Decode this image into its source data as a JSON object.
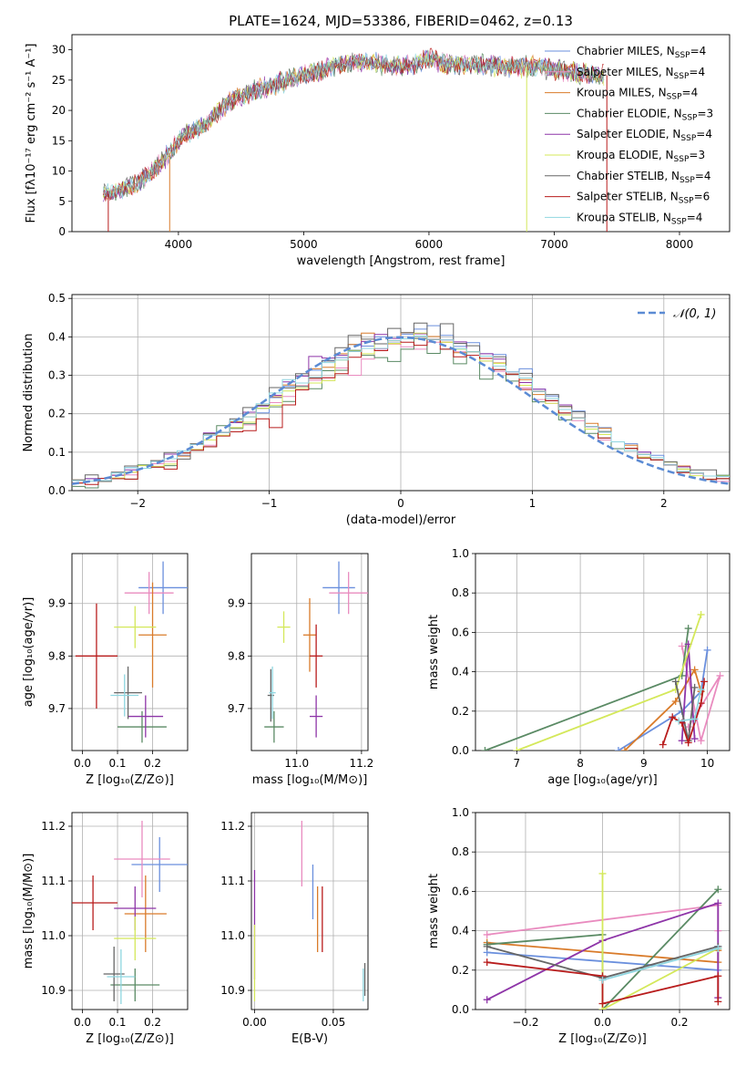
{
  "figure": {
    "title": "PLATE=1624, MJD=53386, FIBERID=0462, z=0.13"
  },
  "colors": {
    "chabrier_miles": "#6a8fdd",
    "salpeter_miles": "#e98bbf",
    "kroupa_miles": "#d97b2a",
    "chabrier_elodie": "#5a8a64",
    "salpeter_elodie": "#8e35a8",
    "kroupa_elodie": "#d4e85a",
    "chabrier_stelib": "#666666",
    "salpeter_stelib": "#b81c1c",
    "kroupa_stelib": "#8fd6e0",
    "normal_curve": "#5b8bd4",
    "grid": "#b0b0b0"
  },
  "chart_data": [
    {
      "id": "spectrum",
      "type": "line",
      "xlabel": "wavelength [Angstrom, rest frame]",
      "ylabel": "Flux [fλ10⁻¹⁷ erg cm⁻² s⁻¹ A⁻¹]",
      "xlim": [
        3150,
        8400
      ],
      "ylim": [
        0,
        32.5
      ],
      "xticks": [
        4000,
        5000,
        6000,
        7000,
        8000
      ],
      "yticks": [
        0,
        5,
        10,
        15,
        20,
        25,
        30
      ],
      "grid": false,
      "legend_position": "top-right",
      "x": [
        3400,
        3550,
        3700,
        3850,
        3950,
        4050,
        4200,
        4350,
        4500,
        4650,
        4800,
        4950,
        5100,
        5250,
        5400,
        5550,
        5700,
        5850,
        6000,
        6200,
        6400,
        6600,
        6800,
        7000,
        7200,
        7400
      ],
      "y": [
        6.0,
        6.8,
        8.5,
        11.0,
        13.5,
        16.0,
        17.5,
        20.5,
        22.5,
        23.5,
        24.5,
        25.5,
        26.5,
        27.2,
        27.8,
        28.0,
        27.2,
        27.5,
        28.5,
        27.5,
        27.5,
        27.3,
        27.2,
        26.8,
        26.0,
        25.8
      ],
      "series": [
        {
          "name": "Chabrier MILES, N_SSP=4",
          "color_key": "chabrier_miles"
        },
        {
          "name": "Salpeter MILES, N_SSP=4",
          "color_key": "salpeter_miles"
        },
        {
          "name": "Kroupa MILES, N_SSP=4",
          "color_key": "kroupa_miles"
        },
        {
          "name": "Chabrier ELODIE, N_SSP=3",
          "color_key": "chabrier_elodie"
        },
        {
          "name": "Salpeter ELODIE, N_SSP=4",
          "color_key": "salpeter_elodie"
        },
        {
          "name": "Kroupa ELODIE, N_SSP=3",
          "color_key": "kroupa_elodie"
        },
        {
          "name": "Chabrier STELIB, N_SSP=4",
          "color_key": "chabrier_stelib"
        },
        {
          "name": "Salpeter STELIB, N_SSP=6",
          "color_key": "salpeter_stelib"
        },
        {
          "name": "Kroupa STELIB, N_SSP=4",
          "color_key": "kroupa_stelib"
        }
      ],
      "edge_drops": [
        {
          "color_key": "salpeter_stelib",
          "x": 3440
        },
        {
          "color_key": "kroupa_miles",
          "x": 3930
        },
        {
          "color_key": "kroupa_elodie",
          "x": 6780
        },
        {
          "color_key": "salpeter_stelib",
          "x": 7420
        }
      ]
    },
    {
      "id": "residuals",
      "type": "line",
      "xlabel": "(data-model)/error",
      "ylabel": "Normed distribution",
      "xlim": [
        -2.5,
        2.5
      ],
      "ylim": [
        0,
        0.51
      ],
      "xticks": [
        -2,
        -1,
        0,
        1,
        2
      ],
      "yticks": [
        0.0,
        0.1,
        0.2,
        0.3,
        0.4,
        0.5
      ],
      "grid": true,
      "legend_position": "top-right",
      "curve_label": "𝒩(0, 1)",
      "bin_centers": [
        -2.45,
        -2.35,
        -2.25,
        -2.15,
        -2.05,
        -1.95,
        -1.85,
        -1.75,
        -1.65,
        -1.55,
        -1.45,
        -1.35,
        -1.25,
        -1.15,
        -1.05,
        -0.95,
        -0.85,
        -0.75,
        -0.65,
        -0.55,
        -0.45,
        -0.35,
        -0.25,
        -0.15,
        -0.05,
        0.05,
        0.15,
        0.25,
        0.35,
        0.45,
        0.55,
        0.65,
        0.75,
        0.85,
        0.95,
        1.05,
        1.15,
        1.25,
        1.35,
        1.45,
        1.55,
        1.65,
        1.75,
        1.85,
        1.95,
        2.05,
        2.15,
        2.25,
        2.35,
        2.45
      ],
      "base_density": [
        0.02,
        0.025,
        0.032,
        0.04,
        0.048,
        0.058,
        0.07,
        0.083,
        0.098,
        0.114,
        0.132,
        0.151,
        0.171,
        0.192,
        0.214,
        0.236,
        0.259,
        0.28,
        0.301,
        0.321,
        0.34,
        0.356,
        0.37,
        0.382,
        0.39,
        0.395,
        0.396,
        0.393,
        0.386,
        0.375,
        0.361,
        0.344,
        0.324,
        0.303,
        0.281,
        0.258,
        0.234,
        0.211,
        0.189,
        0.167,
        0.146,
        0.127,
        0.11,
        0.094,
        0.08,
        0.067,
        0.056,
        0.046,
        0.038,
        0.031
      ],
      "series_offsets": [
        [
          0.0,
          0.01,
          -0.01,
          0.01,
          0.02,
          0.0,
          0.01,
          0.02,
          -0.01,
          0.01,
          0.02,
          0.0,
          0.01,
          0.02,
          -0.02,
          0.01,
          0.02,
          0.0,
          0.02,
          0.03,
          0.01,
          0.04,
          0.01,
          0.03,
          -0.01,
          0.02,
          0.04,
          0.06,
          0.03,
          0.0,
          0.04,
          0.02,
          0.05,
          0.0,
          0.06,
          0.01,
          0.02,
          0.0,
          0.03,
          0.0,
          0.03,
          0.0,
          0.02,
          0.01,
          0.02,
          0.0,
          0.01,
          0.0,
          0.0,
          0.0
        ],
        [
          0.01,
          0.0,
          0.0,
          0.01,
          0.0,
          0.01,
          0.0,
          0.0,
          0.01,
          0.0,
          0.01,
          0.02,
          0.0,
          0.01,
          0.03,
          0.0,
          0.01,
          0.02,
          0.01,
          0.02,
          0.04,
          0.03,
          0.08,
          0.04,
          0.02,
          0.01,
          0.03,
          0.04,
          0.01,
          0.0,
          0.02,
          0.0,
          0.01,
          0.02,
          0.0,
          0.02,
          0.03,
          0.01,
          0.0,
          0.01,
          0.0,
          0.02,
          0.0,
          0.0,
          0.01,
          0.0,
          0.0,
          0.01,
          0.0,
          0.0
        ],
        [
          -0.01,
          0.0,
          0.01,
          0.0,
          -0.01,
          0.0,
          0.0,
          0.01,
          0.01,
          0.0,
          -0.01,
          0.01,
          0.02,
          0.0,
          0.01,
          0.0,
          0.01,
          0.01,
          0.02,
          0.0,
          0.02,
          0.0,
          0.02,
          0.03,
          0.05,
          0.0,
          -0.01,
          0.02,
          0.0,
          0.01,
          0.0,
          -0.02,
          0.0,
          0.0,
          0.01,
          0.0,
          0.01,
          -0.01,
          0.0,
          0.01,
          0.0,
          0.01,
          0.02,
          0.0,
          0.01,
          0.0,
          0.0,
          0.0,
          0.01,
          0.0
        ]
      ]
    },
    {
      "id": "z_age",
      "type": "scatter",
      "xlabel": "Z [log₁₀(Z/Z⊙)]",
      "ylabel": "age  [log₁₀(age/yr)]",
      "xlim": [
        -0.03,
        0.3
      ],
      "ylim": [
        9.62,
        9.995
      ],
      "xticks": [
        0.0,
        0.1,
        0.2
      ],
      "yticks": [
        9.7,
        9.8,
        9.9
      ],
      "grid": true,
      "points": [
        {
          "x": 0.23,
          "y": 9.93,
          "xerr": 0.07,
          "yerr": 0.05,
          "color_key": "chabrier_miles"
        },
        {
          "x": 0.19,
          "y": 9.92,
          "xerr": 0.07,
          "yerr": 0.04,
          "color_key": "salpeter_miles"
        },
        {
          "x": 0.2,
          "y": 9.84,
          "xerr": 0.04,
          "yerr": 0.1,
          "color_key": "kroupa_miles"
        },
        {
          "x": 0.17,
          "y": 9.665,
          "xerr": 0.07,
          "yerr": 0.03,
          "color_key": "chabrier_elodie"
        },
        {
          "x": 0.18,
          "y": 9.685,
          "xerr": 0.05,
          "yerr": 0.04,
          "color_key": "salpeter_elodie"
        },
        {
          "x": 0.15,
          "y": 9.855,
          "xerr": 0.06,
          "yerr": 0.04,
          "color_key": "kroupa_elodie"
        },
        {
          "x": 0.13,
          "y": 9.73,
          "xerr": 0.04,
          "yerr": 0.05,
          "color_key": "chabrier_stelib"
        },
        {
          "x": 0.04,
          "y": 9.8,
          "xerr": 0.06,
          "yerr": 0.1,
          "color_key": "salpeter_stelib"
        },
        {
          "x": 0.12,
          "y": 9.725,
          "xerr": 0.04,
          "yerr": 0.04,
          "color_key": "kroupa_stelib"
        }
      ]
    },
    {
      "id": "mass_age",
      "type": "scatter",
      "xlabel": "mass [log₁₀(M/M⊙)]",
      "ylabel": "",
      "xlim": [
        10.86,
        11.22
      ],
      "ylim": [
        9.62,
        9.995
      ],
      "xticks": [
        11.0,
        11.2
      ],
      "yticks": [
        9.7,
        9.8,
        9.9
      ],
      "grid": true,
      "points": [
        {
          "x": 11.13,
          "y": 9.93,
          "xerr": 0.05,
          "yerr": 0.05,
          "color_key": "chabrier_miles"
        },
        {
          "x": 11.16,
          "y": 9.92,
          "xerr": 0.06,
          "yerr": 0.04,
          "color_key": "salpeter_miles"
        },
        {
          "x": 11.04,
          "y": 9.84,
          "xerr": 0.02,
          "yerr": 0.07,
          "color_key": "kroupa_miles"
        },
        {
          "x": 10.93,
          "y": 9.665,
          "xerr": 0.03,
          "yerr": 0.03,
          "color_key": "chabrier_elodie"
        },
        {
          "x": 11.06,
          "y": 9.685,
          "xerr": 0.02,
          "yerr": 0.04,
          "color_key": "salpeter_elodie"
        },
        {
          "x": 10.96,
          "y": 9.855,
          "xerr": 0.02,
          "yerr": 0.03,
          "color_key": "kroupa_elodie"
        },
        {
          "x": 10.92,
          "y": 9.725,
          "xerr": 0.01,
          "yerr": 0.05,
          "color_key": "chabrier_stelib"
        },
        {
          "x": 11.06,
          "y": 9.8,
          "xerr": 0.02,
          "yerr": 0.06,
          "color_key": "salpeter_stelib"
        },
        {
          "x": 10.925,
          "y": 9.73,
          "xerr": 0.01,
          "yerr": 0.05,
          "color_key": "kroupa_stelib"
        }
      ]
    },
    {
      "id": "age_weight",
      "type": "line",
      "xlabel": "age  [log₁₀(age/yr)]",
      "ylabel": "mass weight",
      "xlim": [
        6.35,
        10.35
      ],
      "ylim": [
        0,
        1
      ],
      "xticks": [
        7,
        8,
        9,
        10
      ],
      "yticks": [
        0.0,
        0.2,
        0.4,
        0.6,
        0.8,
        1.0
      ],
      "grid": true,
      "series": [
        {
          "color_key": "chabrier_miles",
          "x": [
            8.6,
            9.6,
            9.9,
            10.0
          ],
          "y": [
            0.0,
            0.2,
            0.3,
            0.51
          ]
        },
        {
          "color_key": "salpeter_miles",
          "x": [
            9.6,
            9.9,
            10.2,
            9.7
          ],
          "y": [
            0.53,
            0.05,
            0.38,
            0.12
          ]
        },
        {
          "color_key": "kroupa_miles",
          "x": [
            8.7,
            9.5,
            9.8,
            9.9
          ],
          "y": [
            0.0,
            0.25,
            0.41,
            0.3
          ]
        },
        {
          "color_key": "chabrier_elodie",
          "x": [
            6.5,
            9.6,
            9.7
          ],
          "y": [
            0.0,
            0.38,
            0.62
          ]
        },
        {
          "color_key": "salpeter_elodie",
          "x": [
            9.6,
            9.7,
            9.8
          ],
          "y": [
            0.05,
            0.54,
            0.06
          ]
        },
        {
          "color_key": "kroupa_elodie",
          "x": [
            7.0,
            9.5,
            9.9
          ],
          "y": [
            0.0,
            0.31,
            0.69
          ]
        },
        {
          "color_key": "chabrier_stelib",
          "x": [
            9.5,
            9.7,
            9.8
          ],
          "y": [
            0.35,
            0.05,
            0.32
          ]
        },
        {
          "color_key": "salpeter_stelib",
          "x": [
            9.3,
            9.45,
            9.6,
            9.7,
            9.9,
            9.95
          ],
          "y": [
            0.03,
            0.17,
            0.14,
            0.04,
            0.24,
            0.35
          ]
        },
        {
          "color_key": "kroupa_stelib",
          "x": [
            9.55,
            9.8,
            9.9
          ],
          "y": [
            0.15,
            0.16,
            0.31
          ]
        }
      ]
    },
    {
      "id": "z_mass",
      "type": "scatter",
      "xlabel": "Z [log₁₀(Z/Z⊙)]",
      "ylabel": "mass [log₁₀(M/M⊙)]",
      "xlim": [
        -0.03,
        0.3
      ],
      "ylim": [
        10.865,
        11.225
      ],
      "xticks": [
        0.0,
        0.1,
        0.2
      ],
      "yticks": [
        10.9,
        11.0,
        11.1,
        11.2
      ],
      "grid": true,
      "points": [
        {
          "x": 0.22,
          "y": 11.13,
          "xerr": 0.08,
          "yerr": 0.05,
          "color_key": "chabrier_miles"
        },
        {
          "x": 0.17,
          "y": 11.14,
          "xerr": 0.08,
          "yerr": 0.07,
          "color_key": "salpeter_miles"
        },
        {
          "x": 0.18,
          "y": 11.04,
          "xerr": 0.06,
          "yerr": 0.07,
          "color_key": "kroupa_miles"
        },
        {
          "x": 0.15,
          "y": 10.91,
          "xerr": 0.07,
          "yerr": 0.03,
          "color_key": "chabrier_elodie"
        },
        {
          "x": 0.15,
          "y": 11.05,
          "xerr": 0.06,
          "yerr": 0.04,
          "color_key": "salpeter_elodie"
        },
        {
          "x": 0.15,
          "y": 10.995,
          "xerr": 0.06,
          "yerr": 0.04,
          "color_key": "kroupa_elodie"
        },
        {
          "x": 0.09,
          "y": 10.93,
          "xerr": 0.03,
          "yerr": 0.05,
          "color_key": "chabrier_stelib"
        },
        {
          "x": 0.03,
          "y": 11.06,
          "xerr": 0.07,
          "yerr": 0.05,
          "color_key": "salpeter_stelib"
        },
        {
          "x": 0.11,
          "y": 10.925,
          "xerr": 0.04,
          "yerr": 0.05,
          "color_key": "kroupa_stelib"
        }
      ]
    },
    {
      "id": "ebv_mass",
      "type": "scatter",
      "xlabel": "E(B-V)",
      "ylabel": "",
      "xlim": [
        -0.002,
        0.072
      ],
      "ylim": [
        10.865,
        11.225
      ],
      "xticks": [
        0.0,
        0.05
      ],
      "xtick_labels": [
        "0.00",
        "0.05"
      ],
      "yticks": [
        10.9,
        11.0,
        11.1,
        11.2
      ],
      "grid": true,
      "points": [
        {
          "x": 0.037,
          "y": 11.08,
          "yerr": 0.05,
          "color_key": "chabrier_miles"
        },
        {
          "x": 0.03,
          "y": 11.15,
          "yerr": 0.06,
          "color_key": "salpeter_miles"
        },
        {
          "x": 0.04,
          "y": 11.03,
          "yerr": 0.06,
          "color_key": "kroupa_miles"
        },
        {
          "x": 0.0,
          "y": 11.02,
          "yerr": 0.1,
          "color_key": "salpeter_elodie"
        },
        {
          "x": 0.0,
          "y": 10.95,
          "yerr": 0.07,
          "color_key": "kroupa_elodie"
        },
        {
          "x": 0.07,
          "y": 10.92,
          "yerr": 0.03,
          "color_key": "chabrier_stelib"
        },
        {
          "x": 0.043,
          "y": 11.03,
          "yerr": 0.06,
          "color_key": "salpeter_stelib"
        },
        {
          "x": 0.069,
          "y": 10.91,
          "yerr": 0.03,
          "color_key": "kroupa_stelib"
        }
      ]
    },
    {
      "id": "z_weight",
      "type": "line",
      "xlabel": "Z [log₁₀(Z/Z⊙)]",
      "ylabel": "mass weight",
      "xlim": [
        -0.33,
        0.33
      ],
      "ylim": [
        0,
        1
      ],
      "xticks": [
        -0.2,
        0.0,
        0.2
      ],
      "xtick_labels": [
        "−0.2",
        "0.0",
        "0.2"
      ],
      "yticks": [
        0.0,
        0.2,
        0.4,
        0.6,
        0.8,
        1.0
      ],
      "grid": true,
      "series": [
        {
          "color_key": "chabrier_miles",
          "x": [
            -0.3,
            0.3,
            0.3
          ],
          "y": [
            0.29,
            0.2,
            0.32
          ]
        },
        {
          "color_key": "salpeter_miles",
          "x": [
            -0.3,
            0.3,
            0.3
          ],
          "y": [
            0.38,
            0.53,
            0.4
          ]
        },
        {
          "color_key": "kroupa_miles",
          "x": [
            -0.3,
            0.3,
            0.3
          ],
          "y": [
            0.34,
            0.24,
            0.3
          ]
        },
        {
          "color_key": "chabrier_elodie",
          "x": [
            -0.3,
            0.0,
            0.0,
            0.3
          ],
          "y": [
            0.33,
            0.38,
            0.0,
            0.61
          ]
        },
        {
          "color_key": "salpeter_elodie",
          "x": [
            -0.3,
            0.0,
            0.3,
            0.3
          ],
          "y": [
            0.05,
            0.35,
            0.54,
            0.06
          ]
        },
        {
          "color_key": "kroupa_elodie",
          "x": [
            0.0,
            0.0,
            0.3
          ],
          "y": [
            0.69,
            0.0,
            0.31
          ]
        },
        {
          "color_key": "chabrier_stelib",
          "x": [
            -0.3,
            0.0,
            0.3
          ],
          "y": [
            0.32,
            0.16,
            0.32
          ]
        },
        {
          "color_key": "salpeter_stelib",
          "x": [
            -0.3,
            0.0,
            0.0,
            0.3,
            0.3
          ],
          "y": [
            0.24,
            0.17,
            0.03,
            0.17,
            0.04
          ]
        },
        {
          "color_key": "kroupa_stelib",
          "x": [
            0.0,
            0.3
          ],
          "y": [
            0.15,
            0.31
          ]
        }
      ]
    }
  ]
}
